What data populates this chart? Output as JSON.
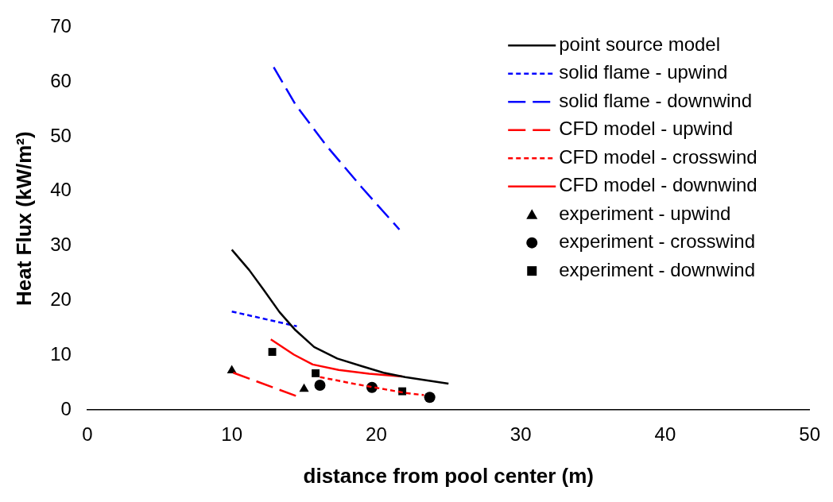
{
  "chart_data": {
    "type": "line",
    "xlabel": "distance from pool center (m)",
    "ylabel": "Heat Flux (kW/m²)",
    "xlim": [
      0,
      50
    ],
    "xticks": [
      0,
      10,
      20,
      30,
      40,
      50
    ],
    "ylim": [
      0,
      70
    ],
    "yticks": [
      0,
      10,
      20,
      30,
      40,
      50,
      60,
      70
    ],
    "grid": false,
    "legend": "top right",
    "series": [
      {
        "name": "point source model",
        "color": "#000000",
        "line_style": "solid",
        "marker": "none",
        "x": [
          10,
          11.2,
          12.2,
          13.3,
          14.4,
          15.7,
          17.3,
          19,
          20.5,
          22,
          25
        ],
        "values": [
          29.3,
          25.6,
          22,
          17.9,
          14.6,
          11.5,
          9.4,
          8,
          6.8,
          6,
          4.8
        ]
      },
      {
        "name": "solid flame - upwind",
        "color": "#0000ff",
        "line_style": "dotted",
        "marker": "none",
        "x": [
          10,
          14.5
        ],
        "values": [
          18,
          15.3
        ]
      },
      {
        "name": "solid flame - downwind",
        "color": "#0000ff",
        "line_style": "dashed",
        "marker": "none",
        "x": [
          12.9,
          14.4,
          16.5,
          19,
          21.6
        ],
        "values": [
          62.7,
          55.9,
          48.5,
          40.7,
          33
        ]
      },
      {
        "name": "CFD model - upwind",
        "color": "#ff0000",
        "line_style": "dashed",
        "marker": "none",
        "x": [
          10.1,
          14.6
        ],
        "values": [
          6.8,
          2.4
        ]
      },
      {
        "name": "CFD model - crosswind",
        "color": "#ff0000",
        "line_style": "dotted",
        "marker": "none",
        "x": [
          16.1,
          18.6,
          22,
          23.3
        ],
        "values": [
          6,
          4.7,
          3.1,
          2.7
        ]
      },
      {
        "name": "CFD model - downwind",
        "color": "#ff0000",
        "line_style": "solid",
        "marker": "none",
        "x": [
          12.7,
          14.3,
          15.6,
          17.4,
          19.5,
          21.8
        ],
        "values": [
          12.9,
          10.1,
          8.3,
          7.3,
          6.6,
          6.1
        ]
      },
      {
        "name": "experiment - upwind",
        "type": "scatter",
        "color": "#000000",
        "marker": "triangle",
        "x": [
          10,
          15
        ],
        "values": [
          7.2,
          3.8
        ]
      },
      {
        "name": "experiment - crosswind",
        "type": "scatter",
        "color": "#000000",
        "marker": "circle",
        "x": [
          16.1,
          19.7,
          23.7
        ],
        "values": [
          4.5,
          4.1,
          2.3
        ]
      },
      {
        "name": "experiment - downwind",
        "type": "scatter",
        "color": "#000000",
        "marker": "square",
        "x": [
          12.8,
          15.8,
          21.8
        ],
        "values": [
          10.6,
          6.7,
          3.4
        ]
      }
    ]
  }
}
